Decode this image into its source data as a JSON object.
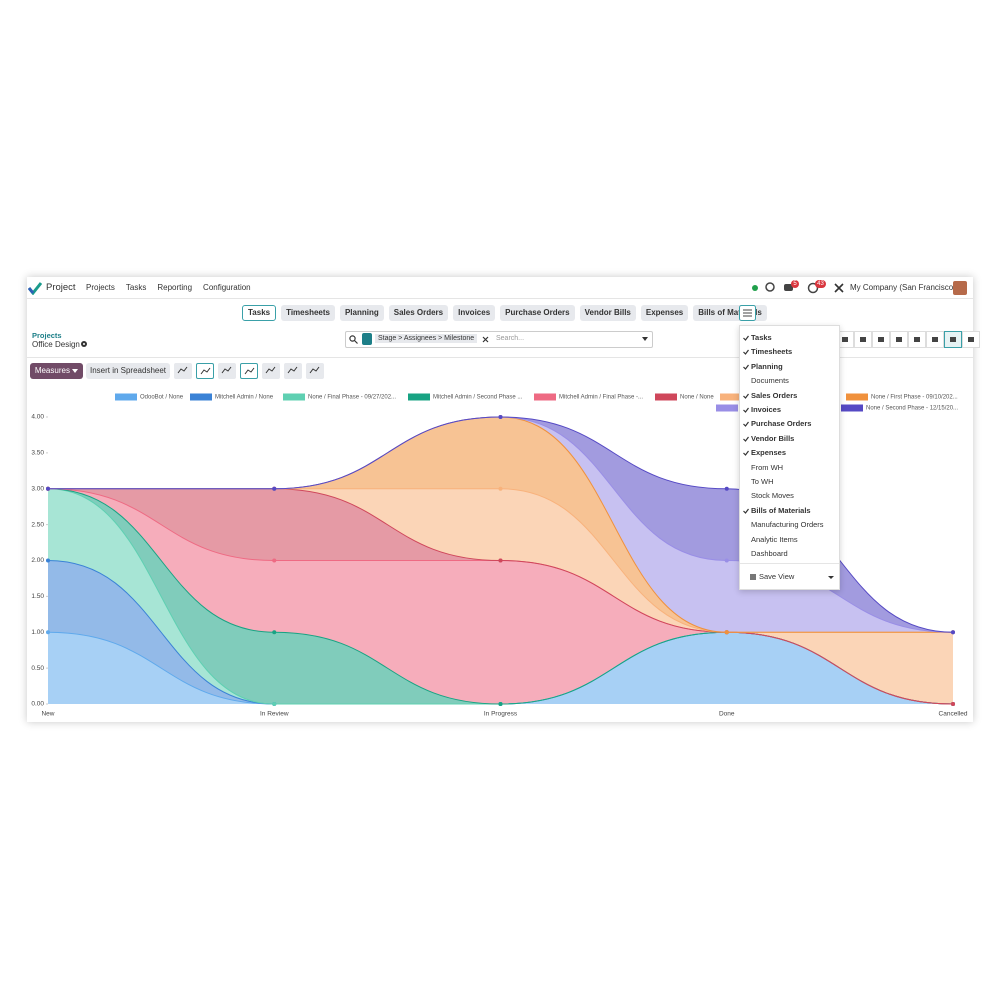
{
  "nav": {
    "brand": "Project",
    "menu": [
      "Projects",
      "Tasks",
      "Reporting",
      "Configuration"
    ],
    "badges": [
      5,
      43
    ],
    "company": "My Company (San Francisco)"
  },
  "tabs": [
    "Tasks",
    "Timesheets",
    "Planning",
    "Sales Orders",
    "Invoices",
    "Purchase Orders",
    "Vendor Bills",
    "Expenses",
    "Bills of Materials"
  ],
  "breadcrumb": {
    "parent": "Projects",
    "current": "Office Design"
  },
  "search": {
    "facet": "Stage > Assignees > Milestone",
    "placeholder": "Search..."
  },
  "toolbar": {
    "measures": "Measures",
    "insert": "Insert in Spreadsheet"
  },
  "dropdown": {
    "items": [
      {
        "label": "Tasks",
        "checked": true
      },
      {
        "label": "Timesheets",
        "checked": true
      },
      {
        "label": "Planning",
        "checked": true
      },
      {
        "label": "Documents",
        "checked": false
      },
      {
        "label": "Sales Orders",
        "checked": true
      },
      {
        "label": "Invoices",
        "checked": true
      },
      {
        "label": "Purchase Orders",
        "checked": true
      },
      {
        "label": "Vendor Bills",
        "checked": true
      },
      {
        "label": "Expenses",
        "checked": true
      },
      {
        "label": "From WH",
        "checked": false
      },
      {
        "label": "To WH",
        "checked": false
      },
      {
        "label": "Stock Moves",
        "checked": false
      },
      {
        "label": "Bills of Materials",
        "checked": true
      },
      {
        "label": "Manufacturing Orders",
        "checked": false
      },
      {
        "label": "Analytic Items",
        "checked": false
      },
      {
        "label": "Dashboard",
        "checked": false
      }
    ],
    "save_view": "Save View"
  },
  "chart_data": {
    "type": "stacked-area",
    "categories": [
      "New",
      "In Review",
      "In Progress",
      "Done",
      "Cancelled"
    ],
    "ylim": [
      0,
      4
    ],
    "yticks": [
      {
        "value": 0,
        "label": "0.00"
      },
      {
        "value": 0.5,
        "label": "0.50"
      },
      {
        "value": 1,
        "label": "1.00"
      },
      {
        "value": 1.5,
        "label": "1.50"
      },
      {
        "value": 2,
        "label": "2.00"
      },
      {
        "value": 2.5,
        "label": "2.50"
      },
      {
        "value": 3,
        "label": "3.00"
      },
      {
        "value": 3.5,
        "label": "3.50"
      },
      {
        "value": 4,
        "label": "4.00"
      }
    ],
    "grid": false,
    "series": [
      {
        "name": "OdooBot / None",
        "color": "#5fa9ec",
        "values": [
          1,
          0,
          0,
          1,
          0
        ]
      },
      {
        "name": "Mitchell Admin / None",
        "color": "#3a82d6",
        "values": [
          1,
          0,
          0,
          0,
          0
        ]
      },
      {
        "name": "None / Final Phase - 09/27/202...",
        "color": "#5fd0b2",
        "values": [
          1,
          0,
          0,
          0,
          0
        ]
      },
      {
        "name": "Mitchell Admin / Second Phase ...",
        "color": "#18a383",
        "values": [
          0,
          1,
          0,
          0,
          0
        ]
      },
      {
        "name": "Mitchell Admin / Final Phase -...",
        "color": "#ee6a83",
        "values": [
          0,
          1,
          2,
          0,
          0
        ]
      },
      {
        "name": "None / None",
        "color": "#cf475b",
        "values": [
          0,
          1,
          0,
          0,
          0
        ]
      },
      {
        "color": "#f8b27c",
        "values": [
          0,
          0,
          1,
          0,
          1
        ]
      },
      {
        "name": "None / First Phase - 09/10/202...",
        "color": "#f0913c",
        "values": [
          0,
          0,
          1,
          0,
          0
        ]
      },
      {
        "color": "#998ee6",
        "values": [
          0,
          0,
          0,
          1,
          0
        ]
      },
      {
        "name": "None / Second Phase - 12/15/20...",
        "color": "#5549c4",
        "values": [
          0,
          0,
          0,
          1,
          0
        ]
      }
    ]
  }
}
